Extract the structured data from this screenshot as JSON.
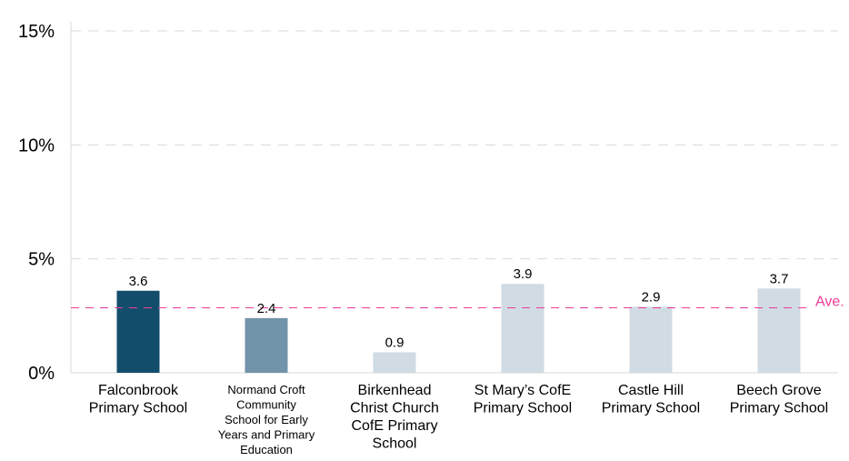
{
  "chart_data": {
    "type": "bar",
    "categories": [
      "Falconbrook Primary School",
      "Normand Croft Community School for Early Years and Primary Education",
      "Birkenhead Christ Church CofE Primary School",
      "St Mary’s CofE Primary School",
      "Castle Hill Primary School",
      "Beech Grove Primary School"
    ],
    "category_lines": [
      [
        "Falconbrook",
        "Primary School"
      ],
      [
        "Normand Croft",
        "Community",
        "School for Early",
        "Years and Primary",
        "Education"
      ],
      [
        "Birkenhead",
        "Christ Church",
        "CofE Primary",
        "School"
      ],
      [
        "St Mary’s CofE",
        "Primary School"
      ],
      [
        "Castle Hill",
        "Primary School"
      ],
      [
        "Beech Grove",
        "Primary School"
      ]
    ],
    "values": [
      3.6,
      2.4,
      0.9,
      3.9,
      2.9,
      3.7
    ],
    "value_labels": [
      "3.6",
      "2.4",
      "0.9",
      "3.9",
      "2.9",
      "3.7"
    ],
    "bar_colors": [
      "#124e6c",
      "#7194aa",
      "#d0dbe3",
      "#d0dbe3",
      "#d0dbe3",
      "#d0dbe3"
    ],
    "ylim": [
      0,
      15
    ],
    "yticks": [
      0,
      5,
      10,
      15
    ],
    "ytick_labels": [
      "0%",
      "5%",
      "10%",
      "15%"
    ],
    "grid": true,
    "grid_color": "#d9d9d9",
    "average": {
      "value": 2.85,
      "label": "Ave.",
      "color": "#ee3c96"
    },
    "title": "",
    "xlabel": "",
    "ylabel": ""
  }
}
